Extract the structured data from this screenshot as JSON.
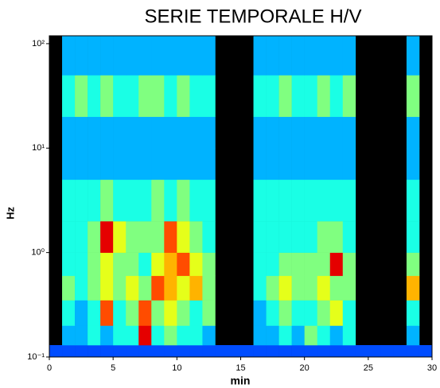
{
  "chart_data": {
    "type": "heatmap",
    "title": "SERIE TEMPORALE H/V",
    "xlabel": "min",
    "ylabel": "Hz",
    "xbins": [
      0,
      1,
      2,
      3,
      4,
      5,
      6,
      7,
      8,
      9,
      10,
      11,
      12,
      13,
      14,
      15,
      16,
      17,
      18,
      19,
      20,
      21,
      22,
      23,
      24,
      25,
      26,
      27,
      28,
      29,
      30
    ],
    "ybins": [
      0.1,
      0.13,
      0.2,
      0.35,
      0.6,
      1,
      2,
      5,
      10,
      20,
      50,
      119
    ],
    "yscale": "log",
    "colormap": "jet",
    "clim": [
      0,
      10
    ],
    "missing_color": "#000000",
    "xlim": [
      0,
      30
    ],
    "ylim": [
      0.1,
      119
    ],
    "xticks": [
      0,
      5,
      10,
      15,
      20,
      25,
      30
    ],
    "yticks": [
      {
        "value": 0.1,
        "label": "10⁻¹"
      },
      {
        "value": 1,
        "label": "10⁰"
      },
      {
        "value": 10,
        "label": "10¹"
      },
      {
        "value": 100,
        "label": "10²"
      }
    ],
    "values": [
      [
        2,
        2,
        2,
        2,
        2,
        2,
        2,
        2,
        2,
        2,
        2,
        2,
        2,
        2,
        2,
        2,
        2,
        2,
        2,
        2,
        2,
        2,
        2,
        2,
        2,
        2,
        2,
        2,
        2,
        2
      ],
      [
        null,
        3,
        3,
        4,
        3,
        4,
        4,
        9,
        4,
        5,
        4,
        4,
        3,
        null,
        null,
        null,
        3,
        3,
        4,
        3,
        5,
        4,
        3,
        4,
        null,
        null,
        null,
        null,
        3,
        null
      ],
      [
        null,
        4,
        3,
        4,
        8,
        4,
        5,
        8,
        5,
        6,
        5,
        4,
        5,
        null,
        null,
        null,
        3,
        4,
        5,
        4,
        4,
        5,
        6,
        4,
        null,
        null,
        null,
        null,
        4,
        null
      ],
      [
        null,
        5,
        4,
        5,
        6,
        5,
        6,
        5,
        8,
        7,
        6,
        7,
        5,
        null,
        null,
        null,
        4,
        5,
        6,
        5,
        5,
        6,
        5,
        5,
        null,
        null,
        null,
        null,
        7,
        null
      ],
      [
        null,
        4,
        4,
        5,
        6,
        5,
        5,
        4,
        6,
        7,
        8,
        6,
        5,
        null,
        null,
        null,
        4,
        4,
        5,
        5,
        5,
        5,
        9,
        5,
        null,
        null,
        null,
        null,
        5,
        null
      ],
      [
        null,
        4,
        4,
        5,
        9,
        6,
        5,
        5,
        5,
        8,
        6,
        5,
        4,
        null,
        null,
        null,
        4,
        4,
        4,
        4,
        4,
        5,
        5,
        4,
        null,
        null,
        null,
        null,
        4,
        null
      ],
      [
        null,
        4,
        4,
        4,
        5,
        4,
        4,
        4,
        5,
        4,
        5,
        4,
        4,
        null,
        null,
        null,
        4,
        4,
        4,
        4,
        4,
        4,
        4,
        4,
        null,
        null,
        null,
        null,
        4,
        null
      ],
      [
        null,
        3,
        3,
        3,
        3,
        3,
        3,
        3,
        3,
        3,
        3,
        3,
        3,
        null,
        null,
        null,
        3,
        3,
        3,
        3,
        3,
        3,
        3,
        3,
        null,
        null,
        null,
        null,
        3,
        null
      ],
      [
        null,
        3,
        3,
        3,
        3,
        3,
        3,
        3,
        3,
        3,
        3,
        3,
        3,
        null,
        null,
        null,
        3,
        3,
        3,
        3,
        3,
        3,
        3,
        3,
        null,
        null,
        null,
        null,
        3,
        null
      ],
      [
        null,
        4,
        5,
        4,
        5,
        4,
        4,
        5,
        5,
        4,
        5,
        4,
        4,
        null,
        null,
        null,
        4,
        4,
        5,
        4,
        4,
        5,
        4,
        5,
        null,
        null,
        null,
        null,
        5,
        null
      ],
      [
        null,
        3,
        3,
        3,
        3,
        3,
        3,
        3,
        3,
        3,
        3,
        3,
        3,
        null,
        null,
        null,
        3,
        3,
        3,
        3,
        3,
        3,
        3,
        3,
        null,
        null,
        null,
        null,
        3,
        null
      ]
    ]
  }
}
